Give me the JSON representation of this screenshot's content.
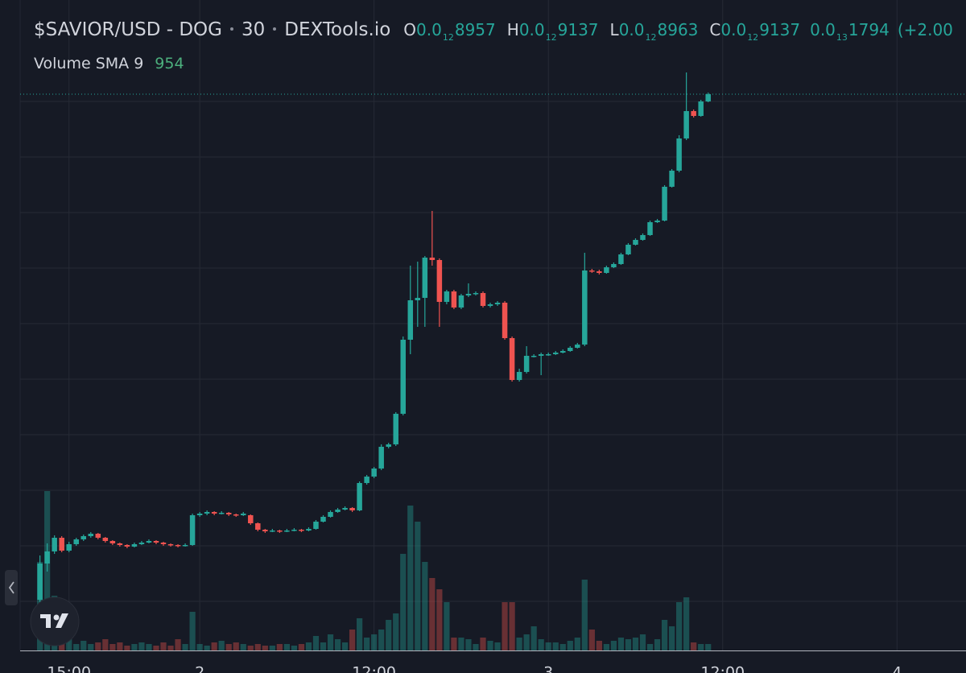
{
  "chart_data": {
    "type": "candlestick",
    "symbol": "$SAVIOR/USD - DOG",
    "interval": "30",
    "source": "DEXTools.io",
    "ohlc": [
      {
        "label": "O",
        "lead": "0.0",
        "sub": "12",
        "digits": "8957"
      },
      {
        "label": "H",
        "lead": "0.0",
        "sub": "12",
        "digits": "9137"
      },
      {
        "label": "L",
        "lead": "0.0",
        "sub": "12",
        "digits": "8963"
      },
      {
        "label": "C",
        "lead": "0.0",
        "sub": "12",
        "digits": "9137"
      }
    ],
    "change": {
      "lead": "0.0",
      "sub": "13",
      "digits": "1794",
      "percent": "(+2.00"
    },
    "volume_label": "Volume SMA 9",
    "volume_sma": 954,
    "up_color": "#26a69a",
    "down_color": "#ef5350",
    "grid": true,
    "xlim": [
      -13.75,
      52.75
    ],
    "xticks": [
      {
        "value": -9,
        "label": "15:00"
      },
      {
        "value": 0,
        "label": "2"
      },
      {
        "value": 12,
        "label": "12:00"
      },
      {
        "value": 24,
        "label": "3"
      },
      {
        "value": 36,
        "label": "12:00"
      },
      {
        "value": 48,
        "label": "4"
      }
    ],
    "ylim": [
      0,
      800
    ],
    "ygrid": [
      61,
      130,
      199,
      268,
      337,
      406,
      475,
      544,
      613,
      682
    ],
    "vlim": [
      0,
      7700
    ],
    "x": [
      -11,
      -10.5,
      -10,
      -9.5,
      -9,
      -8.5,
      -8,
      -7.5,
      -7,
      -6.5,
      -6,
      -5.5,
      -5,
      -4.5,
      -4,
      -3.5,
      -3,
      -2.5,
      -2,
      -1.5,
      -1,
      -0.5,
      0,
      0.5,
      1,
      1.5,
      2,
      2.5,
      3,
      3.5,
      4,
      4.5,
      5,
      5.5,
      6,
      6.5,
      7,
      7.5,
      8,
      8.5,
      9,
      9.5,
      10,
      10.5,
      11,
      11.5,
      12,
      12.5,
      13,
      13.5,
      14,
      14.5,
      15,
      15.5,
      16,
      16.5,
      17,
      17.5,
      18,
      18.5,
      19,
      19.5,
      20,
      20.5,
      21,
      21.5,
      22,
      22.5,
      23,
      23.5,
      24,
      24.5,
      25,
      25.5,
      26,
      26.5,
      27,
      27.5,
      28,
      28.5,
      29,
      29.5,
      30,
      30.5,
      31,
      31.5,
      32,
      32.5,
      33,
      33.5,
      34,
      34.5,
      35
    ],
    "open": [
      63,
      108,
      123,
      140,
      124,
      132,
      138,
      142,
      145,
      140,
      136,
      133,
      131,
      129,
      132,
      134,
      136,
      134,
      132,
      131,
      130,
      131,
      168,
      170,
      172,
      170,
      171,
      169,
      168,
      168,
      158,
      150,
      148,
      149,
      148,
      149,
      150,
      149,
      151,
      160,
      166,
      172,
      175,
      177,
      174,
      208,
      216,
      226,
      253,
      256,
      294,
      386,
      435,
      438,
      488,
      485,
      433,
      446,
      426,
      441,
      443,
      444,
      428,
      430,
      432,
      388,
      336,
      346,
      366,
      366,
      368,
      368,
      370,
      372,
      376,
      380,
      472,
      471,
      469,
      476,
      480,
      492,
      504,
      510,
      516,
      532,
      534,
      576,
      596,
      636,
      670,
      664,
      682
    ],
    "high": [
      118,
      133,
      143,
      142,
      135,
      140,
      144,
      147,
      146,
      141,
      137,
      134,
      132,
      134,
      136,
      138,
      137,
      135,
      133,
      132,
      133,
      170,
      172,
      174,
      173,
      173,
      172,
      170,
      172,
      169,
      159,
      151,
      151,
      150,
      151,
      152,
      151,
      153,
      162,
      168,
      174,
      177,
      179,
      178,
      210,
      218,
      228,
      256,
      258,
      296,
      390,
      478,
      483,
      490,
      546,
      487,
      448,
      448,
      443,
      456,
      446,
      446,
      432,
      434,
      434,
      390,
      350,
      378,
      368,
      370,
      370,
      372,
      374,
      378,
      382,
      494,
      474,
      473,
      478,
      482,
      494,
      506,
      512,
      518,
      534,
      536,
      578,
      598,
      640,
      718,
      672,
      684,
      693
    ],
    "low": [
      48,
      98,
      120,
      122,
      122,
      130,
      136,
      140,
      138,
      134,
      131,
      129,
      127,
      128,
      131,
      133,
      132,
      130,
      129,
      128,
      129,
      130,
      166,
      168,
      168,
      169,
      167,
      166,
      167,
      156,
      148,
      146,
      147,
      146,
      147,
      148,
      147,
      148,
      150,
      159,
      165,
      171,
      174,
      172,
      173,
      206,
      214,
      224,
      251,
      254,
      292,
      368,
      402,
      402,
      478,
      402,
      430,
      424,
      424,
      439,
      441,
      426,
      426,
      428,
      386,
      334,
      334,
      344,
      364,
      342,
      366,
      367,
      369,
      371,
      375,
      378,
      469,
      467,
      468,
      475,
      479,
      491,
      503,
      509,
      515,
      531,
      533,
      575,
      594,
      634,
      662,
      663,
      681
    ],
    "close": [
      108,
      123,
      140,
      124,
      132,
      138,
      142,
      145,
      140,
      136,
      133,
      131,
      129,
      132,
      134,
      136,
      134,
      132,
      131,
      130,
      131,
      168,
      170,
      172,
      170,
      171,
      169,
      168,
      170,
      158,
      150,
      148,
      149,
      148,
      149,
      150,
      149,
      151,
      160,
      166,
      172,
      175,
      177,
      174,
      208,
      216,
      226,
      253,
      256,
      294,
      386,
      435,
      438,
      488,
      485,
      433,
      446,
      426,
      441,
      443,
      444,
      428,
      430,
      432,
      388,
      336,
      346,
      366,
      366,
      368,
      368,
      370,
      372,
      376,
      380,
      472,
      471,
      469,
      476,
      480,
      492,
      504,
      510,
      516,
      532,
      534,
      576,
      596,
      636,
      670,
      664,
      682,
      691
    ],
    "volume": [
      3850,
      6930,
      2380,
      1750,
      875,
      280,
      420,
      280,
      350,
      490,
      280,
      350,
      210,
      280,
      350,
      280,
      210,
      350,
      210,
      490,
      280,
      1680,
      280,
      210,
      350,
      420,
      280,
      350,
      280,
      210,
      280,
      210,
      210,
      280,
      280,
      210,
      280,
      350,
      630,
      350,
      700,
      490,
      350,
      910,
      1400,
      560,
      700,
      910,
      1330,
      1610,
      4200,
      6300,
      5600,
      3850,
      3150,
      2660,
      2100,
      560,
      560,
      490,
      280,
      560,
      420,
      350,
      2100,
      2100,
      560,
      700,
      1050,
      490,
      350,
      350,
      280,
      420,
      560,
      3080,
      910,
      420,
      280,
      420,
      560,
      490,
      560,
      700,
      280,
      490,
      1330,
      1050,
      2100,
      2310,
      350,
      280,
      280
    ]
  }
}
